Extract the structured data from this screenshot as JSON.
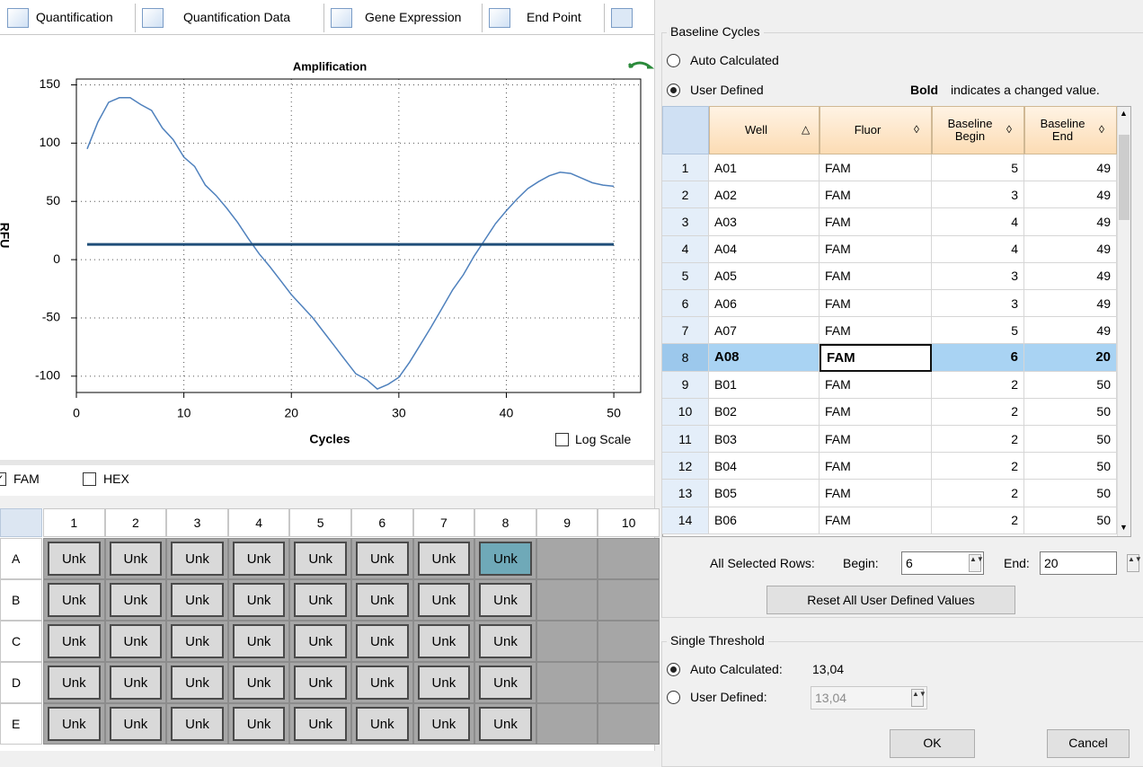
{
  "tabs": [
    "Quantification",
    "Quantification Data",
    "Gene Expression",
    "End Point"
  ],
  "chart_data": {
    "type": "line",
    "title": "Amplification",
    "x_label": "Cycles",
    "y_label": "RFU",
    "x": [
      1,
      2,
      3,
      4,
      5,
      6,
      7,
      8,
      9,
      10,
      11,
      12,
      13,
      14,
      15,
      16,
      17,
      18,
      19,
      20,
      21,
      22,
      23,
      24,
      25,
      26,
      27,
      28,
      29,
      30,
      31,
      32,
      33,
      34,
      35,
      36,
      37,
      38,
      39,
      40,
      41,
      42,
      43,
      44,
      45,
      46,
      47,
      48,
      49,
      50
    ],
    "series": [
      {
        "color": "#4f81bd",
        "values": [
          95,
          118,
          135,
          139,
          139,
          133,
          128,
          113,
          103,
          88,
          80,
          64,
          55,
          44,
          32,
          18,
          5,
          -6,
          -18,
          -30,
          -40,
          -50,
          -62,
          -74,
          -86,
          -98,
          -103,
          -111,
          -107,
          -101,
          -88,
          -73,
          -58,
          -42,
          -26,
          -13,
          3,
          17,
          31,
          42,
          52,
          61,
          67,
          72,
          75,
          74,
          70,
          66,
          64,
          63
        ]
      }
    ],
    "threshold": {
      "value": 13.04,
      "color": "#1f4e79"
    },
    "xlim": [
      0,
      52.5
    ],
    "ylim": [
      -114,
      155
    ],
    "xticks": [
      0,
      10,
      20,
      30,
      40,
      50
    ],
    "yticks": [
      -100,
      -50,
      0,
      50,
      100,
      150
    ],
    "grid": true,
    "log_scale": false
  },
  "log_scale_label": "Log Scale",
  "fluors": [
    {
      "label": "FAM",
      "checked": true
    },
    {
      "label": "HEX",
      "checked": false
    }
  ],
  "plate": {
    "columns": [
      1,
      2,
      3,
      4,
      5,
      6,
      7,
      8,
      9,
      10
    ],
    "selected": [
      0,
      7
    ],
    "rows": [
      {
        "label": "A",
        "cells": [
          "Unk",
          "Unk",
          "Unk",
          "Unk",
          "Unk",
          "Unk",
          "Unk",
          "Unk"
        ]
      },
      {
        "label": "B",
        "cells": [
          "Unk",
          "Unk",
          "Unk",
          "Unk",
          "Unk",
          "Unk",
          "Unk",
          "Unk"
        ]
      },
      {
        "label": "C",
        "cells": [
          "Unk",
          "Unk",
          "Unk",
          "Unk",
          "Unk",
          "Unk",
          "Unk",
          "Unk"
        ]
      },
      {
        "label": "D",
        "cells": [
          "Unk",
          "Unk",
          "Unk",
          "Unk",
          "Unk",
          "Unk",
          "Unk",
          "Unk"
        ]
      },
      {
        "label": "E",
        "cells": [
          "Unk",
          "Unk",
          "Unk",
          "Unk",
          "Unk",
          "Unk",
          "Unk",
          "Unk"
        ]
      }
    ]
  },
  "baseline": {
    "title": "Baseline Cycles",
    "options": [
      "Auto Calculated",
      "User Defined"
    ],
    "selected": 1,
    "note_bold": "Bold",
    "note": "indicates a changed value.",
    "columns": [
      "Well",
      "Fluor",
      "Baseline Begin",
      "Baseline End"
    ],
    "selected_row": 7,
    "rows": [
      [
        1,
        "A01",
        "FAM",
        5,
        49
      ],
      [
        2,
        "A02",
        "FAM",
        3,
        49
      ],
      [
        3,
        "A03",
        "FAM",
        4,
        49
      ],
      [
        4,
        "A04",
        "FAM",
        4,
        49
      ],
      [
        5,
        "A05",
        "FAM",
        3,
        49
      ],
      [
        6,
        "A06",
        "FAM",
        3,
        49
      ],
      [
        7,
        "A07",
        "FAM",
        5,
        49
      ],
      [
        8,
        "A08",
        "FAM",
        6,
        20
      ],
      [
        9,
        "B01",
        "FAM",
        2,
        50
      ],
      [
        10,
        "B02",
        "FAM",
        2,
        50
      ],
      [
        11,
        "B03",
        "FAM",
        2,
        50
      ],
      [
        12,
        "B04",
        "FAM",
        2,
        50
      ],
      [
        13,
        "B05",
        "FAM",
        2,
        50
      ],
      [
        14,
        "B06",
        "FAM",
        2,
        50
      ]
    ],
    "all_selected_label": "All Selected Rows:",
    "begin_label": "Begin:",
    "begin": 6,
    "end_label": "End:",
    "end": 20,
    "reset": "Reset All User Defined Values"
  },
  "threshold_group": {
    "title": "Single Threshold",
    "auto_label": "Auto Calculated:",
    "auto_value": "13,04",
    "user_label": "User Defined:",
    "user_value": "13,04"
  },
  "buttons": [
    "OK",
    "Cancel"
  ]
}
